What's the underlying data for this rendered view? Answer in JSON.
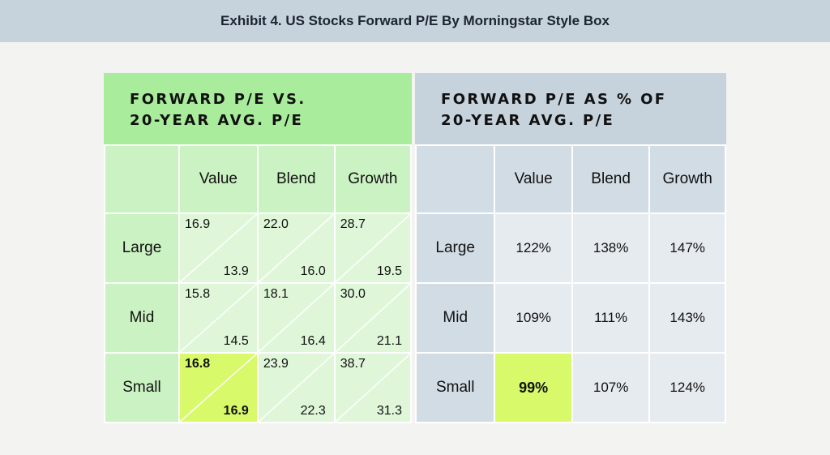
{
  "title": "Exhibit 4. US Stocks Forward P/E By Morningstar Style Box",
  "colors": {
    "title_bg": "#c6d2dc",
    "left_header": "#a9ec9b",
    "left_label": "#cbf2c2",
    "left_cell": "#dff7d8",
    "right_header": "#c6d2dc",
    "right_label": "#d2dce4",
    "right_cell": "#e6ebf0",
    "highlight": "#d8fa6a"
  },
  "chart_data": [
    {
      "type": "table",
      "title_lines": [
        "FORWARD P/E VS.",
        "20-YEAR AVG. P/E"
      ],
      "columns": [
        "Value",
        "Blend",
        "Growth"
      ],
      "rows": [
        "Large",
        "Mid",
        "Small"
      ],
      "forward_pe": [
        [
          "16.9",
          "22.0",
          "28.7"
        ],
        [
          "15.8",
          "18.1",
          "30.0"
        ],
        [
          "16.8",
          "23.9",
          "38.7"
        ]
      ],
      "avg_20yr_pe": [
        [
          "13.9",
          "16.0",
          "19.5"
        ],
        [
          "14.5",
          "16.4",
          "21.1"
        ],
        [
          "16.9",
          "22.3",
          "31.3"
        ]
      ],
      "highlight": {
        "row": 2,
        "col": 0
      }
    },
    {
      "type": "table",
      "title_lines": [
        "FORWARD P/E AS % OF",
        "20-YEAR AVG. P/E"
      ],
      "columns": [
        "Value",
        "Blend",
        "Growth"
      ],
      "rows": [
        "Large",
        "Mid",
        "Small"
      ],
      "values": [
        [
          "122%",
          "138%",
          "147%"
        ],
        [
          "109%",
          "111%",
          "143%"
        ],
        [
          "99%",
          "107%",
          "124%"
        ]
      ],
      "highlight": {
        "row": 2,
        "col": 0
      }
    }
  ]
}
